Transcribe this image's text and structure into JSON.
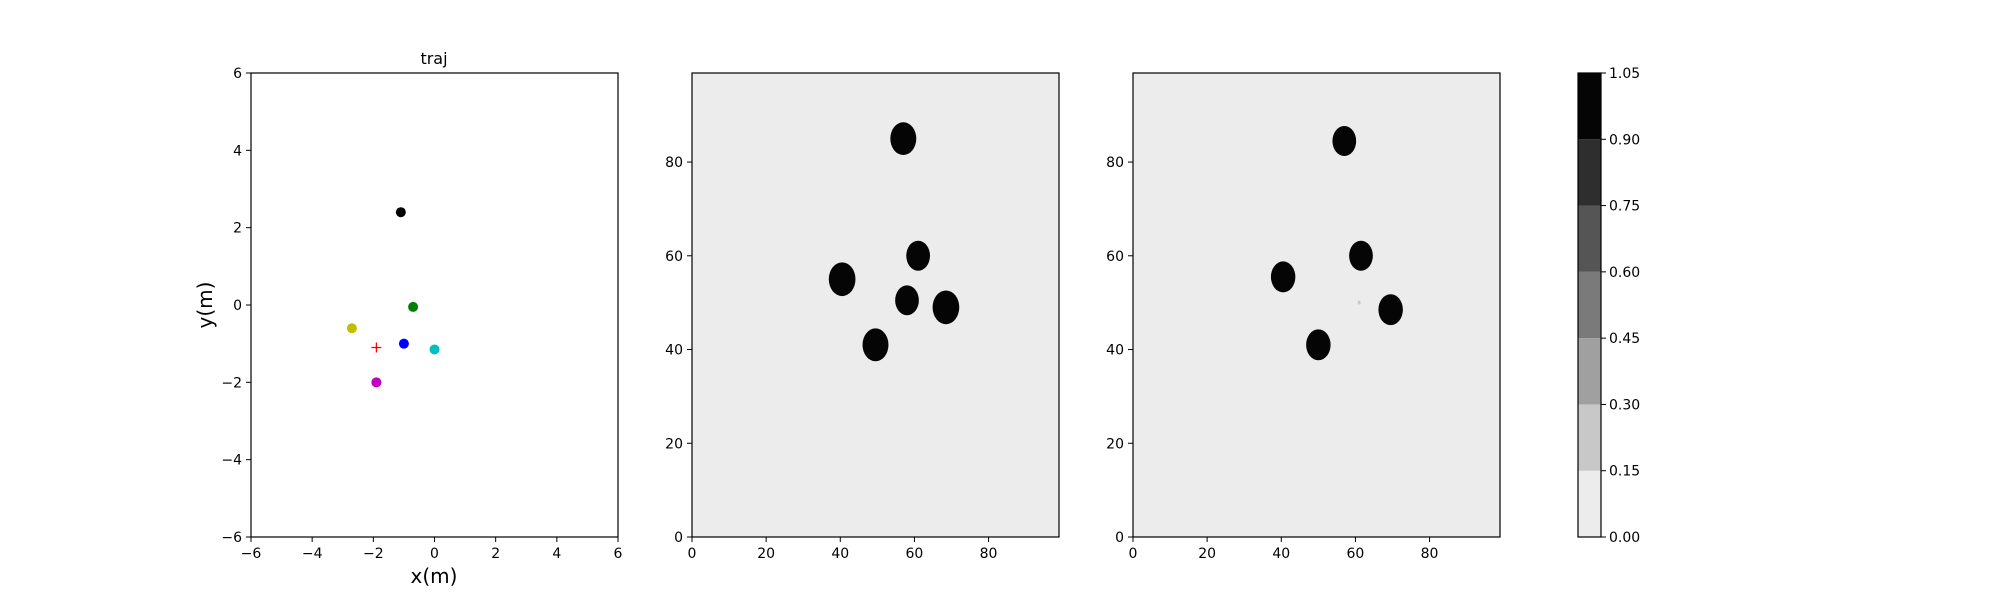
{
  "chart_data": [
    {
      "type": "scatter",
      "title": "traj",
      "xlabel": "x(m)",
      "ylabel": "y(m)",
      "xlim": [
        -6,
        6
      ],
      "ylim": [
        -6,
        6
      ],
      "xticks": [
        -6,
        -4,
        -2,
        0,
        2,
        4,
        6
      ],
      "yticks": [
        -6,
        -4,
        -2,
        0,
        2,
        4,
        6
      ],
      "grid": false,
      "points": [
        {
          "x": -1.1,
          "y": 2.4,
          "color": "#000000",
          "marker": "circle"
        },
        {
          "x": -0.7,
          "y": -0.05,
          "color": "#008000",
          "marker": "circle"
        },
        {
          "x": -2.7,
          "y": -0.6,
          "color": "#bfbf00",
          "marker": "circle"
        },
        {
          "x": -1.0,
          "y": -1.0,
          "color": "#0000ff",
          "marker": "circle"
        },
        {
          "x": 0.0,
          "y": -1.15,
          "color": "#00bfbf",
          "marker": "circle"
        },
        {
          "x": -1.9,
          "y": -2.0,
          "color": "#bf00bf",
          "marker": "circle"
        },
        {
          "x": -1.9,
          "y": -1.1,
          "color": "#ff0000",
          "marker": "plus"
        }
      ]
    },
    {
      "type": "heatmap",
      "title": "",
      "xlim": [
        0,
        99
      ],
      "ylim": [
        0,
        99
      ],
      "xticks": [
        0,
        20,
        40,
        60,
        80
      ],
      "yticks": [
        0,
        20,
        40,
        60,
        80
      ],
      "background_value": 0.0,
      "blobs": [
        {
          "cx": 57,
          "cy": 85,
          "r": 3.5,
          "value": 1.0
        },
        {
          "cx": 61,
          "cy": 60,
          "r": 3.2,
          "value": 1.0
        },
        {
          "cx": 40.5,
          "cy": 55,
          "r": 3.6,
          "value": 1.0
        },
        {
          "cx": 58,
          "cy": 50.5,
          "r": 3.2,
          "value": 1.0
        },
        {
          "cx": 68.5,
          "cy": 49,
          "r": 3.6,
          "value": 1.0
        },
        {
          "cx": 49.5,
          "cy": 41,
          "r": 3.5,
          "value": 1.0
        }
      ]
    },
    {
      "type": "heatmap",
      "title": "",
      "xlim": [
        0,
        99
      ],
      "ylim": [
        0,
        99
      ],
      "xticks": [
        0,
        20,
        40,
        60,
        80
      ],
      "yticks": [
        0,
        20,
        40,
        60,
        80
      ],
      "background_value": 0.0,
      "blobs": [
        {
          "cx": 57,
          "cy": 84.5,
          "r": 3.2,
          "value": 1.0
        },
        {
          "cx": 61.5,
          "cy": 60,
          "r": 3.2,
          "value": 1.0
        },
        {
          "cx": 40.5,
          "cy": 55.5,
          "r": 3.3,
          "value": 1.0
        },
        {
          "cx": 69.5,
          "cy": 48.5,
          "r": 3.3,
          "value": 1.0
        },
        {
          "cx": 50,
          "cy": 41,
          "r": 3.3,
          "value": 1.0
        },
        {
          "cx": 61,
          "cy": 50,
          "r": 0.4,
          "value": 0.3
        }
      ]
    },
    {
      "type": "colorbar",
      "levels": [
        0.0,
        0.15,
        0.3,
        0.45,
        0.6,
        0.75,
        0.9,
        1.05
      ],
      "tick_labels": [
        "0.00",
        "0.15",
        "0.30",
        "0.45",
        "0.60",
        "0.75",
        "0.90",
        "1.05"
      ],
      "band_colors": [
        "#ececec",
        "#c8c8c8",
        "#a0a0a0",
        "#7a7a7a",
        "#555555",
        "#2e2e2e",
        "#050505"
      ]
    }
  ]
}
